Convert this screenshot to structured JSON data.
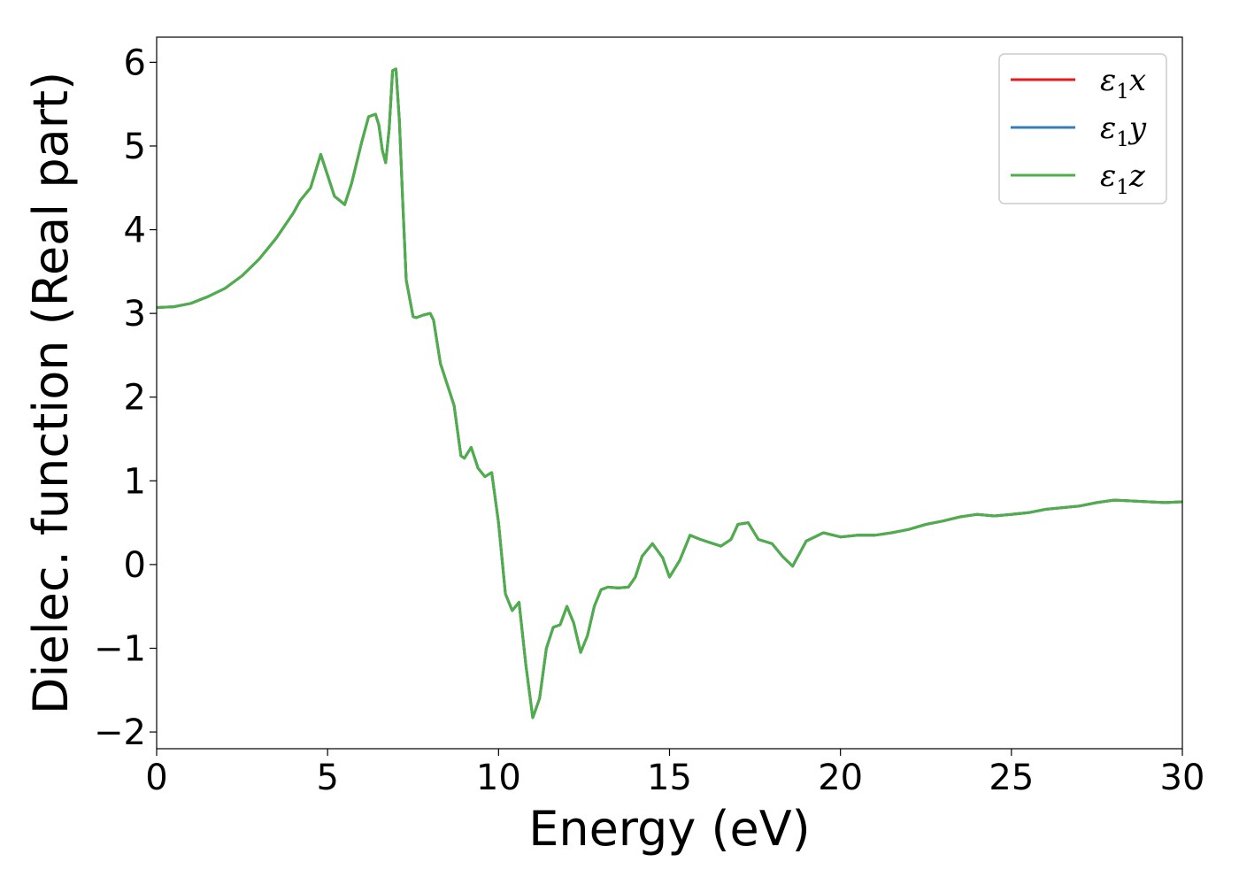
{
  "chart_data": {
    "type": "line",
    "title": "",
    "xlabel": "Energy (eV)",
    "ylabel": "Dielec. function (Real part)",
    "xlim": [
      0,
      30
    ],
    "ylim": [
      -2.2,
      6.3
    ],
    "xticks": [
      0,
      5,
      10,
      15,
      20,
      25,
      30
    ],
    "xtick_labels": [
      "0",
      "5",
      "10",
      "15",
      "20",
      "25",
      "30"
    ],
    "yticks": [
      -2,
      -1,
      0,
      1,
      2,
      3,
      4,
      5,
      6
    ],
    "ytick_labels": [
      "−2",
      "−1",
      "0",
      "1",
      "2",
      "3",
      "4",
      "5",
      "6"
    ],
    "grid": false,
    "legend_position": "top-right",
    "x": [
      0,
      0.5,
      1.0,
      1.5,
      2.0,
      2.5,
      3.0,
      3.5,
      4.0,
      4.2,
      4.5,
      4.8,
      5.0,
      5.2,
      5.5,
      5.7,
      6.0,
      6.2,
      6.4,
      6.5,
      6.6,
      6.7,
      6.8,
      6.9,
      7.0,
      7.1,
      7.2,
      7.3,
      7.5,
      7.6,
      7.8,
      8.0,
      8.1,
      8.3,
      8.5,
      8.7,
      8.9,
      9.0,
      9.2,
      9.4,
      9.6,
      9.8,
      10.0,
      10.2,
      10.4,
      10.6,
      10.8,
      11.0,
      11.2,
      11.4,
      11.6,
      11.8,
      12.0,
      12.2,
      12.4,
      12.6,
      12.8,
      13.0,
      13.2,
      13.5,
      13.8,
      14.0,
      14.2,
      14.5,
      14.8,
      15.0,
      15.3,
      15.6,
      15.9,
      16.2,
      16.5,
      16.8,
      17.0,
      17.3,
      17.6,
      18.0,
      18.3,
      18.6,
      19.0,
      19.5,
      20.0,
      20.5,
      21.0,
      21.5,
      22.0,
      22.5,
      23.0,
      23.5,
      24.0,
      24.5,
      25.0,
      25.5,
      26.0,
      26.5,
      27.0,
      27.5,
      28.0,
      28.5,
      29.0,
      29.5,
      30.0
    ],
    "series": [
      {
        "name": "ε₁x",
        "color": "#e41a1c",
        "y": [
          3.07,
          3.08,
          3.12,
          3.2,
          3.3,
          3.45,
          3.65,
          3.9,
          4.2,
          4.35,
          4.5,
          4.9,
          4.65,
          4.4,
          4.3,
          4.55,
          5.05,
          5.35,
          5.38,
          5.25,
          4.95,
          4.8,
          5.2,
          5.9,
          5.92,
          5.3,
          4.3,
          3.4,
          2.96,
          2.95,
          2.98,
          3.0,
          2.92,
          2.4,
          2.15,
          1.9,
          1.3,
          1.27,
          1.4,
          1.15,
          1.05,
          1.1,
          0.5,
          -0.35,
          -0.55,
          -0.45,
          -1.2,
          -1.83,
          -1.6,
          -1.0,
          -0.75,
          -0.72,
          -0.5,
          -0.7,
          -1.05,
          -0.85,
          -0.5,
          -0.3,
          -0.27,
          -0.28,
          -0.27,
          -0.15,
          0.1,
          0.25,
          0.08,
          -0.15,
          0.05,
          0.35,
          0.3,
          0.26,
          0.22,
          0.3,
          0.48,
          0.5,
          0.3,
          0.25,
          0.1,
          -0.02,
          0.28,
          0.38,
          0.33,
          0.35,
          0.35,
          0.38,
          0.42,
          0.48,
          0.52,
          0.57,
          0.6,
          0.58,
          0.6,
          0.62,
          0.66,
          0.68,
          0.7,
          0.74,
          0.77,
          0.76,
          0.75,
          0.74,
          0.75
        ]
      },
      {
        "name": "ε₁y",
        "color": "#377eb8",
        "y": [
          3.07,
          3.08,
          3.12,
          3.2,
          3.3,
          3.45,
          3.65,
          3.9,
          4.2,
          4.35,
          4.5,
          4.9,
          4.65,
          4.4,
          4.3,
          4.55,
          5.05,
          5.35,
          5.38,
          5.25,
          4.95,
          4.8,
          5.2,
          5.9,
          5.92,
          5.3,
          4.3,
          3.4,
          2.96,
          2.95,
          2.98,
          3.0,
          2.92,
          2.4,
          2.15,
          1.9,
          1.3,
          1.27,
          1.4,
          1.15,
          1.05,
          1.1,
          0.5,
          -0.35,
          -0.55,
          -0.45,
          -1.2,
          -1.83,
          -1.6,
          -1.0,
          -0.75,
          -0.72,
          -0.5,
          -0.7,
          -1.05,
          -0.85,
          -0.5,
          -0.3,
          -0.27,
          -0.28,
          -0.27,
          -0.15,
          0.1,
          0.25,
          0.08,
          -0.15,
          0.05,
          0.35,
          0.3,
          0.26,
          0.22,
          0.3,
          0.48,
          0.5,
          0.3,
          0.25,
          0.1,
          -0.02,
          0.28,
          0.38,
          0.33,
          0.35,
          0.35,
          0.38,
          0.42,
          0.48,
          0.52,
          0.57,
          0.6,
          0.58,
          0.6,
          0.62,
          0.66,
          0.68,
          0.7,
          0.74,
          0.77,
          0.76,
          0.75,
          0.74,
          0.75
        ]
      },
      {
        "name": "ε₁z",
        "color": "#4daf4a",
        "y": [
          3.07,
          3.08,
          3.12,
          3.2,
          3.3,
          3.45,
          3.65,
          3.9,
          4.2,
          4.35,
          4.5,
          4.9,
          4.65,
          4.4,
          4.3,
          4.55,
          5.05,
          5.35,
          5.38,
          5.25,
          4.95,
          4.8,
          5.2,
          5.9,
          5.92,
          5.3,
          4.3,
          3.4,
          2.96,
          2.95,
          2.98,
          3.0,
          2.92,
          2.4,
          2.15,
          1.9,
          1.3,
          1.27,
          1.4,
          1.15,
          1.05,
          1.1,
          0.5,
          -0.35,
          -0.55,
          -0.45,
          -1.2,
          -1.83,
          -1.6,
          -1.0,
          -0.75,
          -0.72,
          -0.5,
          -0.7,
          -1.05,
          -0.85,
          -0.5,
          -0.3,
          -0.27,
          -0.28,
          -0.27,
          -0.15,
          0.1,
          0.25,
          0.08,
          -0.15,
          0.05,
          0.35,
          0.3,
          0.26,
          0.22,
          0.3,
          0.48,
          0.5,
          0.3,
          0.25,
          0.1,
          -0.02,
          0.28,
          0.38,
          0.33,
          0.35,
          0.35,
          0.38,
          0.42,
          0.48,
          0.52,
          0.57,
          0.6,
          0.58,
          0.6,
          0.62,
          0.66,
          0.68,
          0.7,
          0.74,
          0.77,
          0.76,
          0.75,
          0.74,
          0.75
        ]
      }
    ],
    "legend": [
      {
        "symbol": "ε",
        "sub": "1",
        "axis": "x",
        "color": "#e41a1c"
      },
      {
        "symbol": "ε",
        "sub": "1",
        "axis": "y",
        "color": "#377eb8"
      },
      {
        "symbol": "ε",
        "sub": "1",
        "axis": "z",
        "color": "#4daf4a"
      }
    ]
  }
}
